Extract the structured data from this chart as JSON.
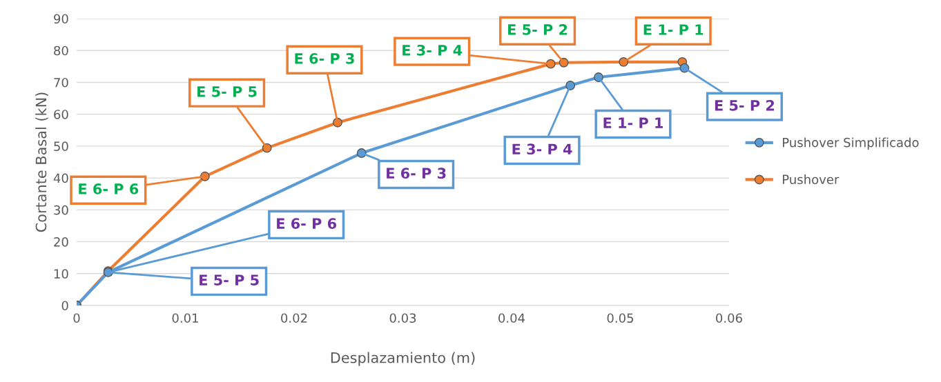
{
  "chart_data": {
    "type": "line",
    "xlabel": "Desplazamiento (m)",
    "ylabel": "Cortante Basal (kN)",
    "xlim": [
      0,
      0.06
    ],
    "xticks": [
      0,
      0.01,
      0.02,
      0.03,
      0.04,
      0.05,
      0.06
    ],
    "ylim": [
      0,
      90
    ],
    "yticks": [
      0,
      10,
      20,
      30,
      40,
      50,
      60,
      70,
      80,
      90
    ],
    "grid": "y",
    "legend": "right",
    "marker": "circle",
    "line_style": "solid",
    "series": [
      {
        "name": "Pushover Simplificado",
        "color": "#5b9bd5",
        "x": [
          0,
          0.0029,
          0.0262,
          0.0454,
          0.048,
          0.0559
        ],
        "values": [
          0,
          10.4,
          47.8,
          69.0,
          71.6,
          74.5
        ]
      },
      {
        "name": "Pushover",
        "color": "#ed7d31",
        "x": [
          0,
          0.0029,
          0.0118,
          0.0175,
          0.024,
          0.0436,
          0.0448,
          0.0503,
          0.0557
        ],
        "values": [
          0,
          10.8,
          40.5,
          49.4,
          57.4,
          75.8,
          76.2,
          76.4,
          76.4
        ]
      }
    ],
    "annotations": [
      {
        "text": "E 6- P 6",
        "x": 0.0118,
        "y": 40.5
      },
      {
        "text": "E 5- P 5",
        "x": 0.0175,
        "y": 49.4
      },
      {
        "text": "E 6- P 3",
        "x": 0.024,
        "y": 57.4
      },
      {
        "text": "E 3- P 4",
        "x": 0.0436,
        "y": 75.8
      },
      {
        "text": "E 5- P 2",
        "x": 0.0448,
        "y": 76.2
      },
      {
        "text": "E 1- P 1",
        "x": 0.0503,
        "y": 76.4
      },
      {
        "text": "E 5- P 2",
        "x": 0.0559,
        "y": 74.5
      },
      {
        "text": "E 1- P 1",
        "x": 0.048,
        "y": 71.6
      },
      {
        "text": "E 3- P 4",
        "x": 0.0454,
        "y": 69.0
      },
      {
        "text": "E 6- P 3",
        "x": 0.0262,
        "y": 47.8
      },
      {
        "text": "E 6- P 6",
        "x": 0.0029,
        "y": 10.4
      },
      {
        "text": "E 5- P 5",
        "x": 0.0029,
        "y": 10.4
      }
    ]
  }
}
